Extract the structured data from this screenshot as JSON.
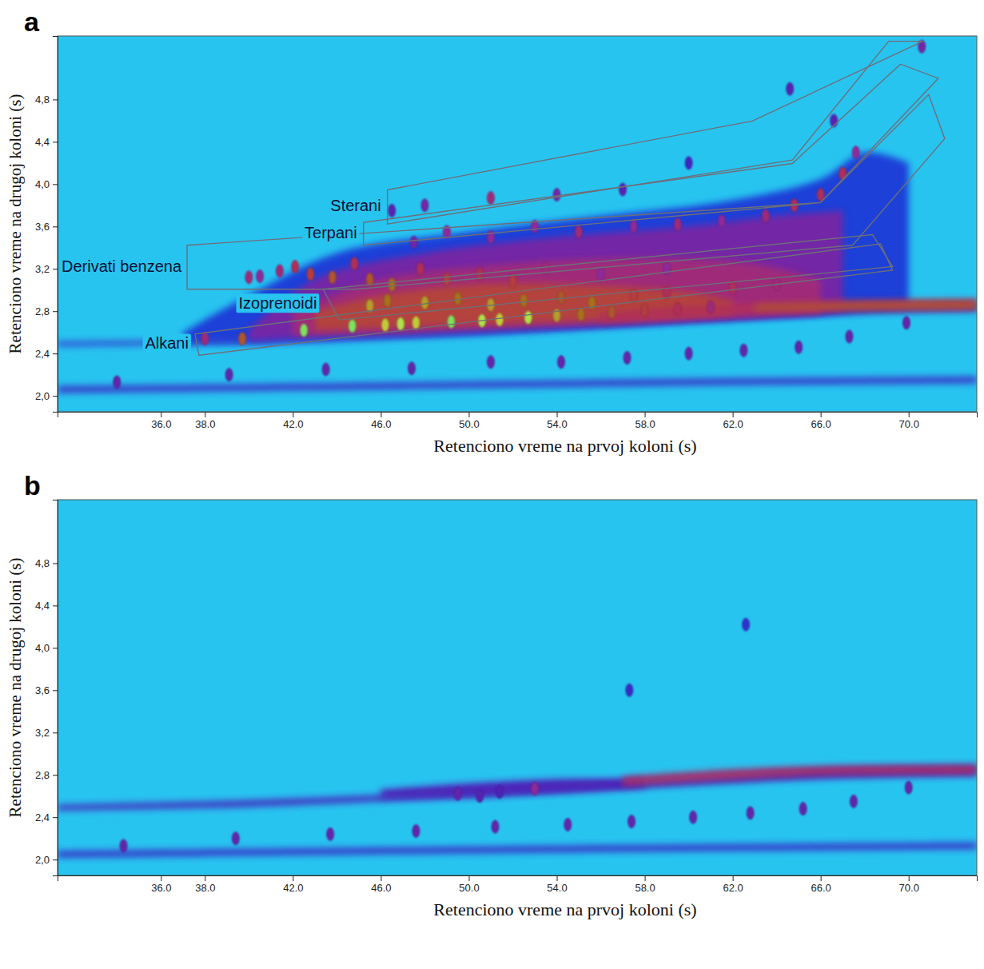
{
  "chart_data": [
    {
      "type": "heatmap",
      "panel": "a",
      "xlabel": "Retenciono vreme na prvoj koloni (s)",
      "ylabel": "Retenciono vreme na drugoj koloni (s)",
      "xlim": [
        31.3,
        73.1
      ],
      "ylim": [
        1.85,
        5.4
      ],
      "xticks": [
        {
          "value": 36,
          "label": "36.0"
        },
        {
          "value": 38,
          "label": "38.0"
        },
        {
          "value": 42,
          "label": "42.0"
        },
        {
          "value": 46,
          "label": "46.0"
        },
        {
          "value": 50,
          "label": "50.0"
        },
        {
          "value": 54,
          "label": "54.0"
        },
        {
          "value": 58,
          "label": "58.0"
        },
        {
          "value": 62,
          "label": "62.0"
        },
        {
          "value": 66,
          "label": "66.0"
        },
        {
          "value": 70,
          "label": "70.0"
        }
      ],
      "yticks": [
        {
          "value": 2.0,
          "label": "2,0"
        },
        {
          "value": 2.4,
          "label": "2,4"
        },
        {
          "value": 2.8,
          "label": "2,8"
        },
        {
          "value": 3.2,
          "label": "3,2"
        },
        {
          "value": 3.6,
          "label": "3,6"
        },
        {
          "value": 4.0,
          "label": "4,0"
        },
        {
          "value": 4.4,
          "label": "4,4"
        },
        {
          "value": 4.8,
          "label": "4,8"
        }
      ],
      "zlim": [
        0,
        1
      ],
      "bands": [
        {
          "x": [
            31.3,
            45,
            60,
            73.1
          ],
          "y_low": [
            2.03,
            2.06,
            2.1,
            2.12
          ],
          "y_high": [
            2.09,
            2.12,
            2.16,
            2.18
          ],
          "intensity": 0.32
        },
        {
          "x": [
            37,
            40,
            44,
            50,
            56,
            62,
            66,
            68,
            70
          ],
          "y_low": [
            2.5,
            2.5,
            2.54,
            2.6,
            2.66,
            2.72,
            2.76,
            2.8,
            2.83
          ],
          "y_high": [
            2.6,
            2.95,
            3.35,
            3.55,
            3.7,
            3.85,
            4.05,
            4.3,
            4.2
          ],
          "intensity": 0.25
        },
        {
          "x": [
            31.3,
            38,
            44,
            50,
            56,
            62,
            66,
            73.1
          ],
          "y_low": [
            2.47,
            2.49,
            2.52,
            2.57,
            2.64,
            2.72,
            2.77,
            2.8
          ],
          "y_high": [
            2.51,
            2.53,
            2.57,
            2.63,
            2.71,
            2.8,
            2.85,
            2.88
          ],
          "intensity": 0.3
        },
        {
          "x": [
            40,
            43,
            48,
            54,
            60,
            64,
            67
          ],
          "y_low": [
            2.52,
            2.56,
            2.6,
            2.66,
            2.72,
            2.76,
            2.8
          ],
          "y_high": [
            2.62,
            3.1,
            3.35,
            3.5,
            3.6,
            3.7,
            3.75
          ],
          "intensity": 0.45
        },
        {
          "x": [
            42,
            46,
            52,
            58,
            63,
            66
          ],
          "y_low": [
            2.57,
            2.6,
            2.65,
            2.7,
            2.75,
            2.78
          ],
          "y_high": [
            2.8,
            3.1,
            3.25,
            3.3,
            3.25,
            3.1
          ],
          "intensity": 0.55
        },
        {
          "x": [
            43,
            46,
            50,
            55,
            60,
            62
          ],
          "y_low": [
            2.62,
            2.64,
            2.67,
            2.71,
            2.75,
            2.78
          ],
          "y_high": [
            2.8,
            2.95,
            3.05,
            3.05,
            2.98,
            2.9
          ],
          "intensity": 0.66
        },
        {
          "x": [
            56,
            60,
            64,
            68,
            73.1
          ],
          "y_low": [
            2.7,
            2.75,
            2.79,
            2.81,
            2.82
          ],
          "y_high": [
            2.78,
            2.84,
            2.88,
            2.9,
            2.91
          ],
          "intensity": 0.6
        },
        {
          "x": [
            63,
            68,
            73.1
          ],
          "y_low": [
            2.81,
            2.82,
            2.83
          ],
          "y_high": [
            2.86,
            2.88,
            2.89
          ],
          "intensity": 0.7
        }
      ],
      "peaks": {
        "x": [
          38.0,
          39.7,
          42.5,
          44.7,
          46.2,
          46.9,
          47.6,
          49.2,
          50.6,
          51.4,
          52.7,
          54.0,
          55.1,
          56.5,
          58.0,
          59.5,
          61.0,
          45.5,
          46.3,
          48.0,
          49.5,
          51.0,
          52.5,
          54.2,
          55.6,
          57.5,
          59.0,
          62.0,
          64.0,
          40.0,
          40.5,
          41.4,
          42.1,
          42.8,
          43.8,
          44.8,
          45.5,
          46.5,
          47.8,
          49.0,
          50.5,
          52.0,
          53.5,
          56.0,
          59.0,
          47.5,
          49.0,
          51.0,
          53.0,
          55.0,
          57.5,
          59.5,
          61.5,
          63.5,
          64.8,
          66.0,
          67.0,
          67.6,
          46.5,
          48.0,
          51.0,
          54.0,
          57.0,
          60.0,
          64.6,
          66.6,
          70.6,
          34.0,
          39.1,
          43.5,
          47.4,
          51.0,
          54.2,
          57.2,
          60.0,
          62.5,
          65.0,
          67.3,
          69.9
        ],
        "y": [
          2.54,
          2.54,
          2.62,
          2.66,
          2.67,
          2.68,
          2.69,
          2.7,
          2.71,
          2.72,
          2.74,
          2.76,
          2.77,
          2.79,
          2.81,
          2.82,
          2.84,
          2.85,
          2.9,
          2.88,
          2.92,
          2.86,
          2.9,
          2.93,
          2.88,
          2.95,
          2.98,
          3.02,
          3.05,
          3.12,
          3.13,
          3.18,
          3.22,
          3.15,
          3.12,
          3.25,
          3.1,
          3.05,
          3.2,
          3.1,
          3.15,
          3.08,
          3.2,
          3.15,
          3.2,
          3.45,
          3.55,
          3.5,
          3.6,
          3.55,
          3.6,
          3.62,
          3.65,
          3.7,
          3.8,
          3.9,
          4.1,
          4.3,
          3.75,
          3.8,
          3.87,
          3.9,
          3.95,
          4.2,
          4.9,
          4.6,
          5.3,
          2.13,
          2.2,
          2.25,
          2.26,
          2.32,
          2.32,
          2.36,
          2.4,
          2.43,
          2.46,
          2.56,
          2.69
        ],
        "intensity": [
          0.55,
          0.7,
          0.95,
          0.95,
          0.85,
          0.9,
          0.85,
          0.95,
          0.9,
          0.85,
          0.9,
          0.8,
          0.75,
          0.7,
          0.65,
          0.6,
          0.55,
          0.8,
          0.75,
          0.8,
          0.75,
          0.8,
          0.75,
          0.7,
          0.75,
          0.65,
          0.6,
          0.6,
          0.55,
          0.55,
          0.5,
          0.55,
          0.6,
          0.65,
          0.7,
          0.6,
          0.7,
          0.75,
          0.6,
          0.65,
          0.6,
          0.65,
          0.55,
          0.5,
          0.5,
          0.45,
          0.5,
          0.5,
          0.5,
          0.55,
          0.5,
          0.55,
          0.5,
          0.55,
          0.6,
          0.6,
          0.6,
          0.5,
          0.4,
          0.45,
          0.55,
          0.45,
          0.4,
          0.35,
          0.4,
          0.4,
          0.45,
          0.42,
          0.42,
          0.42,
          0.42,
          0.42,
          0.42,
          0.42,
          0.42,
          0.42,
          0.42,
          0.42,
          0.42
        ]
      },
      "regions": [
        {
          "name": "Sterani",
          "x": [
            46.3,
            62.89,
            70.65,
            69.09,
            64.71,
            46.3
          ],
          "y": [
            3.946,
            4.597,
            5.35,
            5.35,
            4.228,
            3.624
          ]
        },
        {
          "name": "Terpani",
          "x": [
            45.21,
            64.71,
            69.63,
            71.35,
            65.99,
            45.21
          ],
          "y": [
            3.638,
            4.195,
            5.134,
            5.0,
            3.826,
            3.423
          ]
        },
        {
          "name": "Derivati benzena",
          "x": [
            37.19,
            65.99,
            70.91,
            71.64,
            67.45,
            44.84,
            37.19
          ],
          "y": [
            3.423,
            3.826,
            4.846,
            4.43,
            3.423,
            3.007,
            3.007
          ]
        },
        {
          "name": "Izoprenoidi",
          "x": [
            43.38,
            68.36,
            69.27,
            44.11
          ],
          "y": [
            3.007,
            3.523,
            3.221,
            2.718
          ]
        },
        {
          "name": "Alkani",
          "x": [
            37.55,
            68.72,
            69.27,
            37.73
          ],
          "y": [
            2.584,
            3.436,
            3.188,
            2.383
          ]
        }
      ]
    },
    {
      "type": "heatmap",
      "panel": "b",
      "xlabel": "Retenciono vreme na prvoj koloni (s)",
      "ylabel": "Retenciono vreme na drugoj koloni (s)",
      "xlim": [
        31.3,
        73.1
      ],
      "ylim": [
        1.85,
        5.4
      ],
      "xticks": [
        {
          "value": 36,
          "label": "36.0"
        },
        {
          "value": 38,
          "label": "38.0"
        },
        {
          "value": 42,
          "label": "42.0"
        },
        {
          "value": 46,
          "label": "46.0"
        },
        {
          "value": 50,
          "label": "50.0"
        },
        {
          "value": 54,
          "label": "54.0"
        },
        {
          "value": 58,
          "label": "58.0"
        },
        {
          "value": 62,
          "label": "62.0"
        },
        {
          "value": 66,
          "label": "66.0"
        },
        {
          "value": 70,
          "label": "70.0"
        }
      ],
      "yticks": [
        {
          "value": 2.0,
          "label": "2,0"
        },
        {
          "value": 2.4,
          "label": "2,4"
        },
        {
          "value": 2.8,
          "label": "2,8"
        },
        {
          "value": 3.2,
          "label": "3,2"
        },
        {
          "value": 3.6,
          "label": "3,6"
        },
        {
          "value": 4.0,
          "label": "4,0"
        },
        {
          "value": 4.4,
          "label": "4,4"
        },
        {
          "value": 4.8,
          "label": "4,8"
        }
      ],
      "zlim": [
        0,
        1
      ],
      "bands": [
        {
          "x": [
            31.3,
            45,
            60,
            73.1
          ],
          "y_low": [
            2.02,
            2.05,
            2.08,
            2.1
          ],
          "y_high": [
            2.08,
            2.11,
            2.14,
            2.16
          ],
          "intensity": 0.32
        },
        {
          "x": [
            31.3,
            40,
            48,
            54,
            60,
            66,
            73.1
          ],
          "y_low": [
            2.465,
            2.5,
            2.57,
            2.63,
            2.7,
            2.76,
            2.79
          ],
          "y_high": [
            2.515,
            2.56,
            2.63,
            2.7,
            2.78,
            2.86,
            2.89
          ],
          "intensity": 0.36
        },
        {
          "x": [
            46,
            50,
            54,
            58
          ],
          "y_low": [
            2.58,
            2.6,
            2.64,
            2.68
          ],
          "y_high": [
            2.66,
            2.72,
            2.76,
            2.76
          ],
          "intensity": 0.38
        },
        {
          "x": [
            57,
            62,
            66,
            73.1
          ],
          "y_low": [
            2.7,
            2.76,
            2.8,
            2.81
          ],
          "y_high": [
            2.78,
            2.85,
            2.88,
            2.89
          ],
          "intensity": 0.58
        }
      ],
      "peaks": {
        "x": [
          34.3,
          39.4,
          43.7,
          47.6,
          51.2,
          54.5,
          57.4,
          60.2,
          62.8,
          65.2,
          67.5,
          70.0,
          49.5,
          50.5,
          51.4,
          53.0,
          57.3,
          62.6
        ],
        "y": [
          2.13,
          2.2,
          2.24,
          2.27,
          2.31,
          2.33,
          2.36,
          2.4,
          2.44,
          2.48,
          2.55,
          2.68,
          2.62,
          2.6,
          2.64,
          2.67,
          3.6,
          4.22
        ],
        "intensity": [
          0.42,
          0.42,
          0.42,
          0.42,
          0.42,
          0.42,
          0.42,
          0.42,
          0.42,
          0.42,
          0.42,
          0.42,
          0.42,
          0.4,
          0.38,
          0.5,
          0.33,
          0.3
        ]
      }
    }
  ]
}
